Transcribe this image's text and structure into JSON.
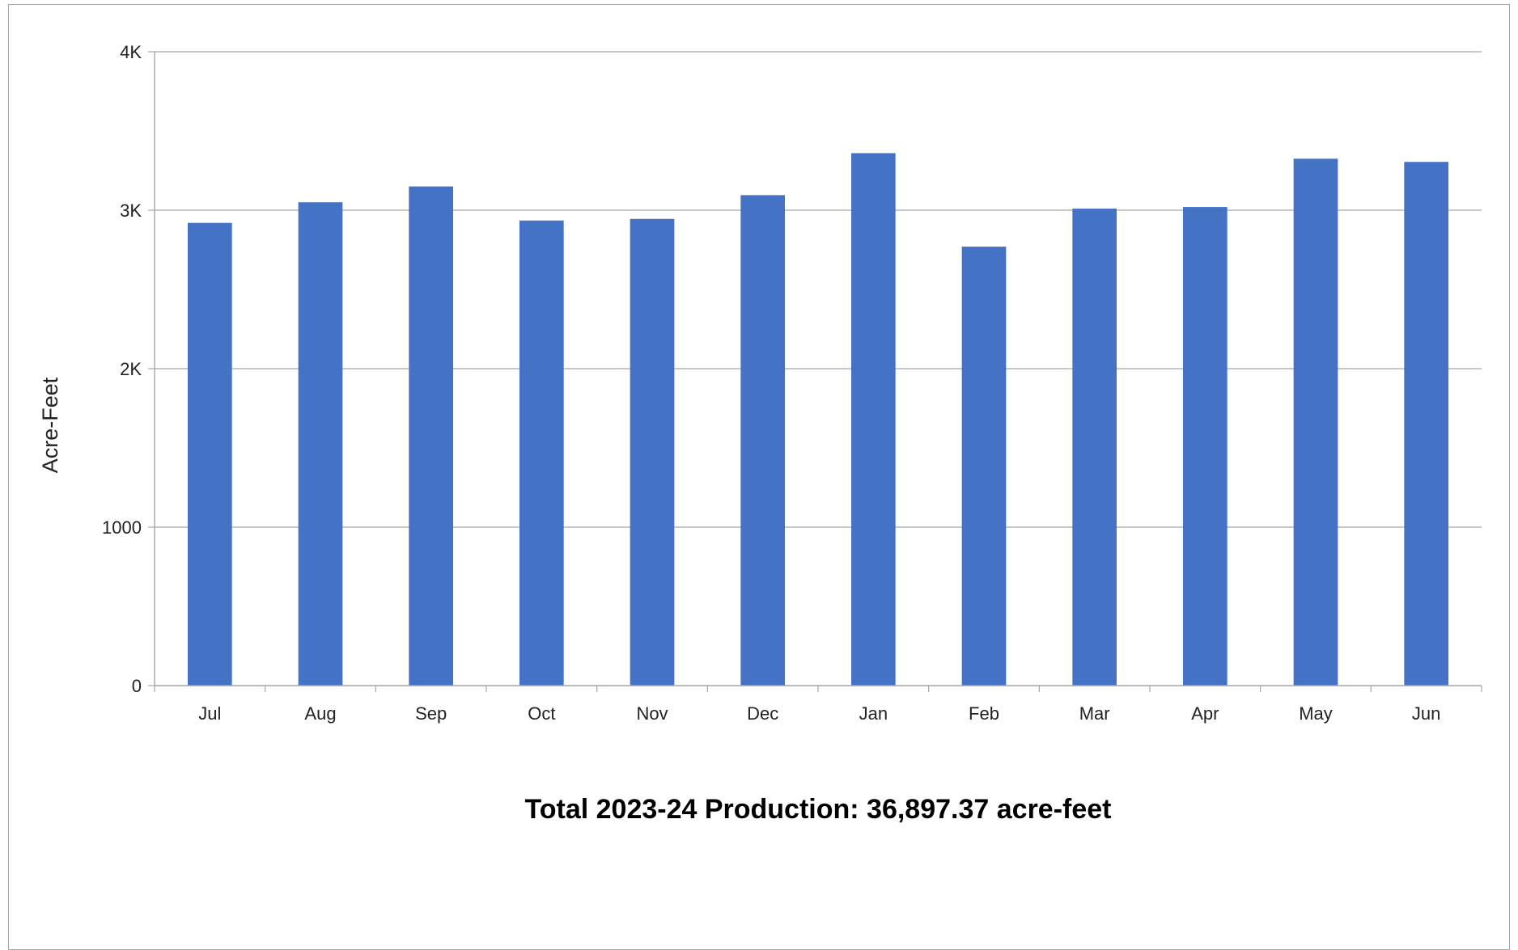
{
  "chart_data": {
    "type": "bar",
    "categories": [
      "Jul",
      "Aug",
      "Sep",
      "Oct",
      "Nov",
      "Dec",
      "Jan",
      "Feb",
      "Mar",
      "Apr",
      "May",
      "Jun"
    ],
    "values": [
      2920,
      3050,
      3150,
      2935,
      2945,
      3095,
      3360,
      2770,
      3010,
      3020,
      3325,
      3305
    ],
    "title": "",
    "xlabel": "",
    "ylabel": "Acre-Feet",
    "ylim": [
      0,
      4000
    ],
    "yticks": [
      0,
      1000,
      2000,
      3000,
      4000
    ],
    "ytick_labels": [
      "0",
      "1000",
      "2K",
      "3K",
      "4K"
    ],
    "grid": true,
    "legend": "none",
    "bar_color": "#4472c4",
    "footer": "Total 2023-24 Production: 36,897.37 acre-feet"
  }
}
